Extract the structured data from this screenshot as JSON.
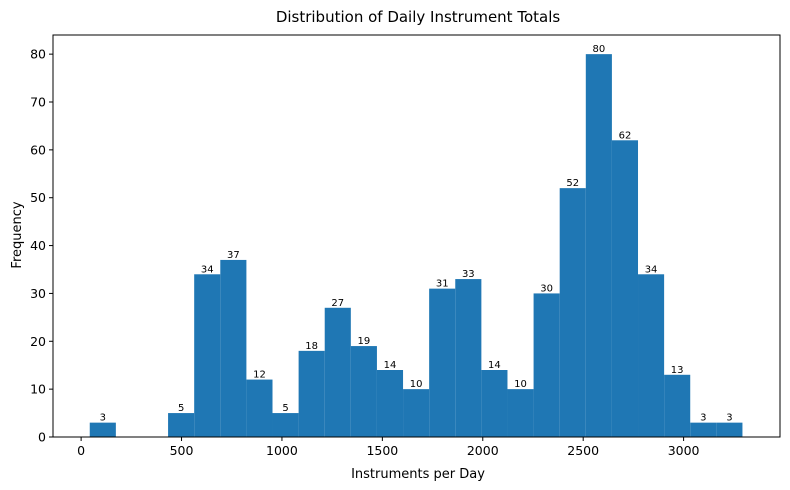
{
  "chart_data": {
    "type": "bar",
    "title": "Distribution of Daily Instrument Totals",
    "xlabel": "Instruments per Day",
    "ylabel": "Frequency",
    "xlim": [
      -140,
      3480
    ],
    "ylim": [
      0,
      84
    ],
    "xticks": [
      0,
      500,
      1000,
      1500,
      2000,
      2500,
      3000
    ],
    "yticks": [
      0,
      10,
      20,
      30,
      40,
      50,
      60,
      70,
      80
    ],
    "bar_color": "#1f77b4",
    "bin_edges": [
      43,
      173,
      303,
      433,
      563,
      693,
      823,
      953,
      1083,
      1213,
      1343,
      1473,
      1603,
      1733,
      1863,
      1993,
      2123,
      2253,
      2383,
      2513,
      2643,
      2773,
      2903,
      3033,
      3163,
      3293
    ],
    "values": [
      3,
      0,
      0,
      5,
      34,
      37,
      12,
      5,
      18,
      27,
      19,
      14,
      10,
      31,
      33,
      14,
      10,
      30,
      52,
      80,
      62,
      34,
      13,
      3,
      3
    ],
    "labels": [
      "3",
      "",
      "",
      "5",
      "34",
      "37",
      "12",
      "5",
      "18",
      "27",
      "19",
      "14",
      "10",
      "31",
      "33",
      "14",
      "10",
      "30",
      "52",
      "80",
      "62",
      "34",
      "13",
      "3",
      "3"
    ],
    "legend": false,
    "grid": false
  }
}
